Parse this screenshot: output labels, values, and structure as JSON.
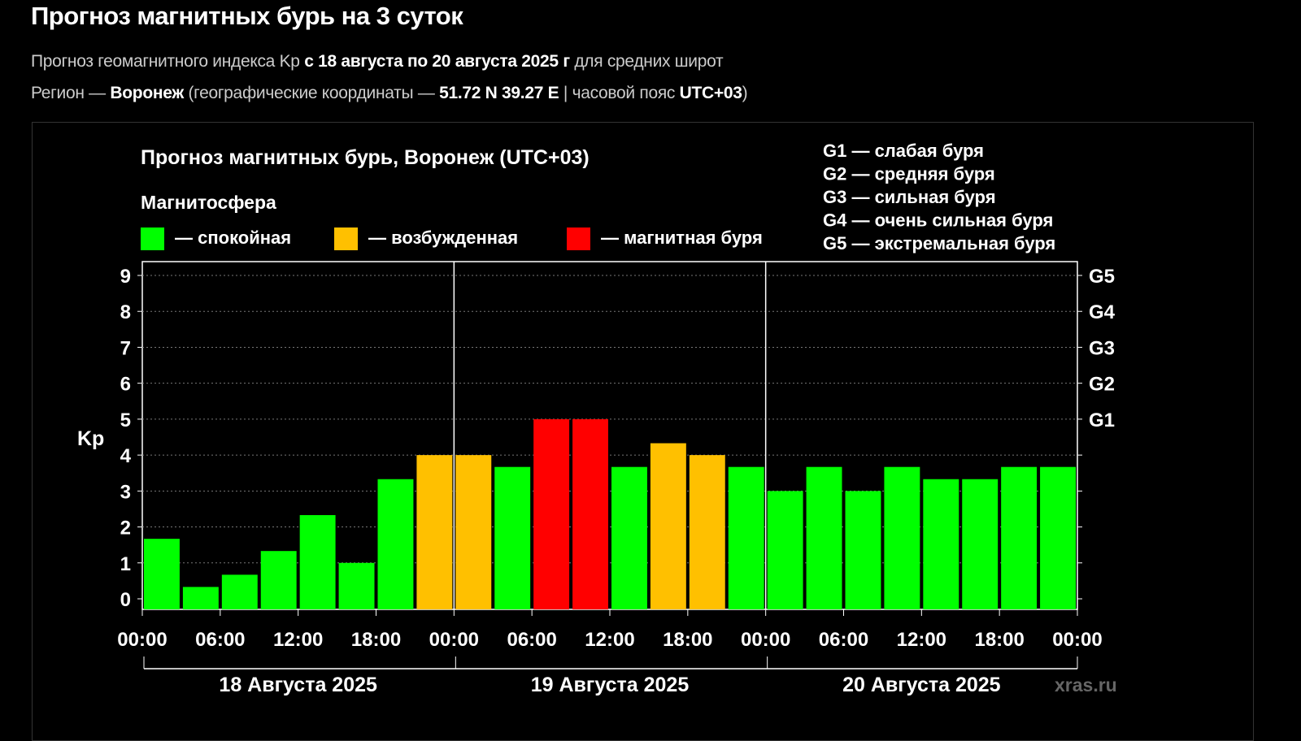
{
  "page": {
    "title": "Прогноз магнитных бурь на 3 суток",
    "subtitle1": {
      "pre": "Прогноз геомагнитного индекса Kp ",
      "bold": "с 18 августа по 20 августа 2025 г",
      "post": " для средних широт"
    },
    "subtitle2": {
      "pre": "Регион — ",
      "city": "Воронеж",
      "mid": " (географические координаты — ",
      "coords": "51.72 N 39.27 E",
      "mid2": " | часовой пояс ",
      "tz": "UTC+03",
      "post": ")"
    }
  },
  "chart_data": {
    "type": "bar",
    "title": "Прогноз магнитных бурь, Воронеж (UTC+03)",
    "legend_title": "Магнитосфера",
    "legend": [
      {
        "label": "— спокойная",
        "color": "#00ff00"
      },
      {
        "label": "— возбужденная",
        "color": "#ffc000"
      },
      {
        "label": "— магнитная буря",
        "color": "#ff0000"
      }
    ],
    "g_legend": [
      "G1 — слабая буря",
      "G2 — средняя буря",
      "G3 — сильная буря",
      "G4 — очень сильная буря",
      "G5 — экстремальная буря"
    ],
    "ylabel": "Kp",
    "ylim": [
      0,
      9
    ],
    "yticks": [
      0,
      1,
      2,
      3,
      4,
      5,
      6,
      7,
      8,
      9
    ],
    "g_ticks": [
      {
        "kp": 5,
        "label": "G1"
      },
      {
        "kp": 6,
        "label": "G2"
      },
      {
        "kp": 7,
        "label": "G3"
      },
      {
        "kp": 8,
        "label": "G4"
      },
      {
        "kp": 9,
        "label": "G5"
      }
    ],
    "xtick_labels": [
      "00:00",
      "06:00",
      "12:00",
      "18:00",
      "00:00",
      "06:00",
      "12:00",
      "18:00",
      "00:00",
      "06:00",
      "12:00",
      "18:00",
      "00:00"
    ],
    "days": [
      "18 Августа 2025",
      "19 Августа 2025",
      "20 Августа 2025"
    ],
    "interval_hours": 3,
    "values": [
      1.67,
      0.33,
      0.67,
      1.33,
      2.33,
      1.0,
      3.33,
      4.0,
      4.0,
      3.67,
      5.0,
      5.0,
      3.67,
      4.33,
      4.0,
      3.67,
      3.0,
      3.67,
      3.0,
      3.67,
      3.33,
      3.33,
      3.67,
      3.67
    ],
    "watermark": "xras.ru",
    "grid": true
  }
}
